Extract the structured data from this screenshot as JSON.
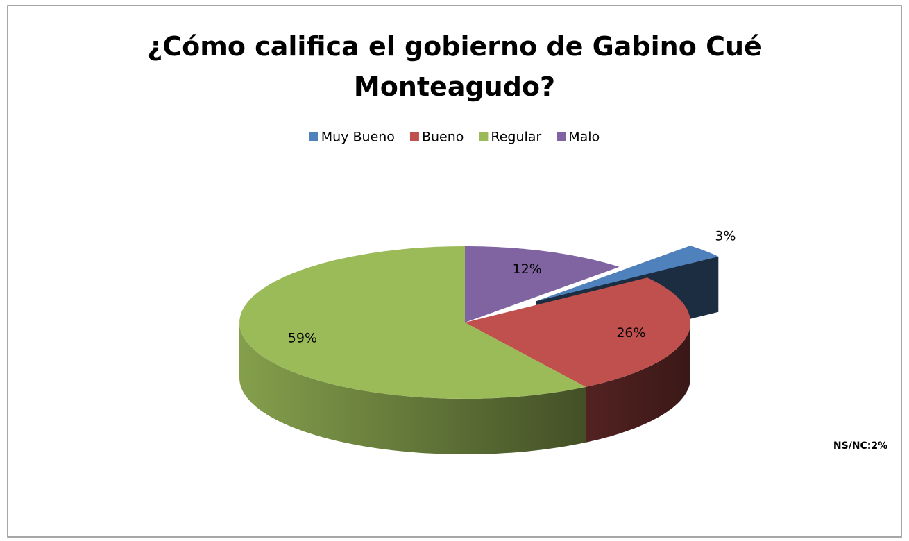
{
  "chart_data": {
    "type": "pie3d",
    "title": "¿Cómo califica el gobierno de Gabino Cué Monteagudo?",
    "categories": [
      "Muy Bueno",
      "Bueno",
      "Regular",
      "Malo"
    ],
    "values": [
      3,
      26,
      59,
      12
    ],
    "value_labels": [
      "3%",
      "26%",
      "59%",
      "12%"
    ],
    "colors": [
      "#4f81bd",
      "#c0504d",
      "#9bbb59",
      "#8064a2"
    ],
    "exploded": [
      "Muy Bueno"
    ],
    "legend": "top",
    "annotation": "NS/NC:2%"
  }
}
